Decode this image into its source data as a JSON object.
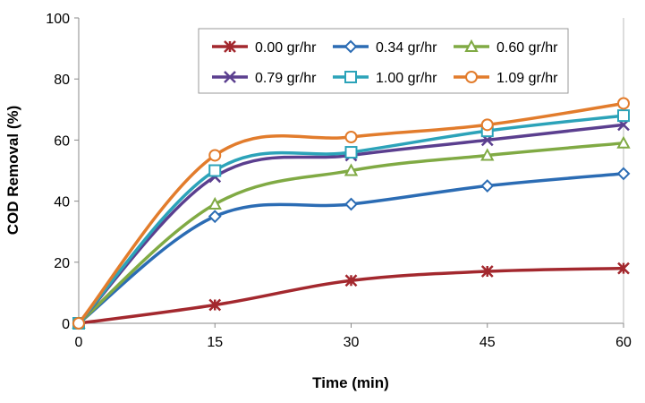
{
  "chart_data": {
    "type": "line",
    "title": "",
    "xlabel": "Time (min)",
    "ylabel": "COD Removal (%)",
    "x": [
      0,
      15,
      30,
      45,
      60
    ],
    "xticks": [
      "0",
      "15",
      "30",
      "45",
      "60"
    ],
    "yticks": [
      "0",
      "20",
      "40",
      "60",
      "80",
      "100"
    ],
    "xlim": [
      0,
      60
    ],
    "ylim": [
      0,
      100
    ],
    "grid": false,
    "legend_placement": "top-right",
    "smooth": true,
    "series": [
      {
        "name": "0.00 gr/hr",
        "values": [
          0,
          6,
          14,
          17,
          18
        ],
        "color": "#a3282e",
        "marker": "star"
      },
      {
        "name": "0.34 gr/hr",
        "values": [
          0,
          35,
          39,
          45,
          49
        ],
        "color": "#2b6cb4",
        "marker": "diamond"
      },
      {
        "name": "0.60 gr/hr",
        "values": [
          0,
          39,
          50,
          55,
          59
        ],
        "color": "#80aa44",
        "marker": "triangle"
      },
      {
        "name": "0.79 gr/hr",
        "values": [
          0,
          48,
          55,
          60,
          65
        ],
        "color": "#5b3f8f",
        "marker": "x"
      },
      {
        "name": "1.00 gr/hr",
        "values": [
          0,
          50,
          56,
          63,
          68
        ],
        "color": "#2ca3b9",
        "marker": "square"
      },
      {
        "name": "1.09 gr/hr",
        "values": [
          0,
          55,
          61,
          65,
          72
        ],
        "color": "#e27c2c",
        "marker": "circle"
      }
    ]
  }
}
